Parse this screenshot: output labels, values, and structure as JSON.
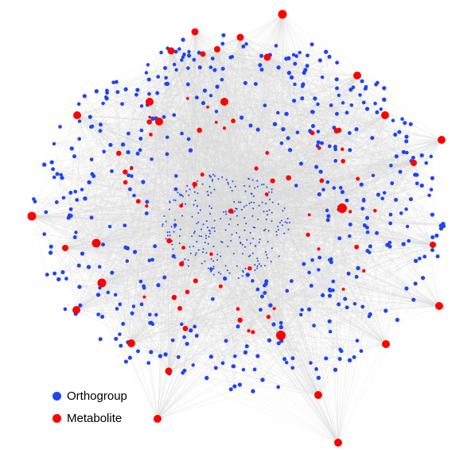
{
  "colors": {
    "orthogroup": "#1f45f0",
    "metabolite": "#ff0000",
    "edge": "#d8d8d8",
    "background": "#ffffff"
  },
  "legend": {
    "items": [
      {
        "label": "Orthogroup",
        "color": "#1f45f0"
      },
      {
        "label": "Metabolite",
        "color": "#ff0000"
      }
    ]
  }
}
